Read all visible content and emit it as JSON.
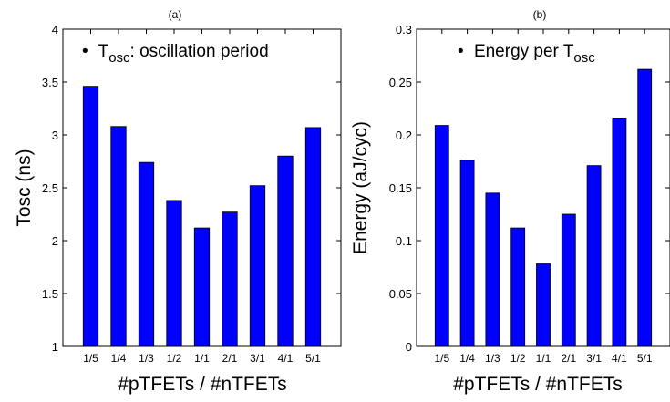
{
  "chart_data": [
    {
      "type": "bar",
      "title": "(a)",
      "ylabel": "Tosc (ns)",
      "xlabel": "#pTFETs / #nTFETs",
      "categories": [
        "1/5",
        "1/4",
        "1/3",
        "1/2",
        "1/1",
        "2/1",
        "3/1",
        "4/1",
        "5/1"
      ],
      "values": [
        3.46,
        3.08,
        2.74,
        2.38,
        2.12,
        2.27,
        2.52,
        2.8,
        3.07
      ],
      "ylim": [
        1,
        4
      ],
      "yticks": [
        1,
        1.5,
        2,
        2.5,
        3,
        3.5,
        4
      ],
      "ytick_labels": [
        "1",
        "1.5",
        "2",
        "2.5",
        "3",
        "3.5",
        "4"
      ],
      "legend": {
        "bullet": "•",
        "main": "T",
        "sub": "osc",
        "rest": ": oscillation period"
      },
      "bar_color": "#0000ff",
      "grid": false
    },
    {
      "type": "bar",
      "title": "(b)",
      "ylabel": "Energy (aJ/cyc)",
      "xlabel": "#pTFETs / #nTFETs",
      "categories": [
        "1/5",
        "1/4",
        "1/3",
        "1/2",
        "1/1",
        "2/1",
        "3/1",
        "4/1",
        "5/1"
      ],
      "values": [
        0.209,
        0.176,
        0.145,
        0.112,
        0.078,
        0.125,
        0.171,
        0.216,
        0.262
      ],
      "ylim": [
        0,
        0.3
      ],
      "yticks": [
        0,
        0.05,
        0.1,
        0.15,
        0.2,
        0.25,
        0.3
      ],
      "ytick_labels": [
        "0",
        "0.05",
        "0.1",
        "0.15",
        "0.2",
        "0.25",
        "0.3"
      ],
      "legend": {
        "bullet": "•",
        "main": "Energy per T",
        "sub": "osc",
        "rest": ""
      },
      "bar_color": "#0000ff",
      "grid": false
    }
  ]
}
